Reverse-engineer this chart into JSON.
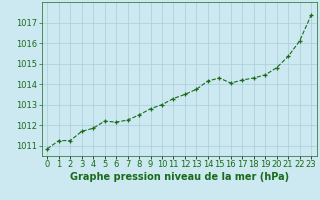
{
  "x": [
    0,
    1,
    2,
    3,
    4,
    5,
    6,
    7,
    8,
    9,
    10,
    11,
    12,
    13,
    14,
    15,
    16,
    17,
    18,
    19,
    20,
    21,
    22,
    23
  ],
  "y": [
    1010.85,
    1011.25,
    1011.25,
    1011.7,
    1011.85,
    1012.2,
    1012.15,
    1012.25,
    1012.5,
    1012.8,
    1013.0,
    1013.3,
    1013.5,
    1013.75,
    1014.15,
    1014.3,
    1014.05,
    1014.2,
    1014.3,
    1014.45,
    1014.8,
    1015.35,
    1016.1,
    1017.35
  ],
  "title": "Graphe pression niveau de la mer (hPa)",
  "background_color": "#cce8f0",
  "grid_color": "#aaccd8",
  "line_color": "#1a6b1a",
  "marker_color": "#1a6b1a",
  "text_color": "#1a6b1a",
  "ylim_min": 1010.5,
  "ylim_max": 1018.0,
  "yticks": [
    1011,
    1012,
    1013,
    1014,
    1015,
    1016,
    1017
  ],
  "xlabel_fontsize": 7.0,
  "tick_fontsize": 6.0
}
